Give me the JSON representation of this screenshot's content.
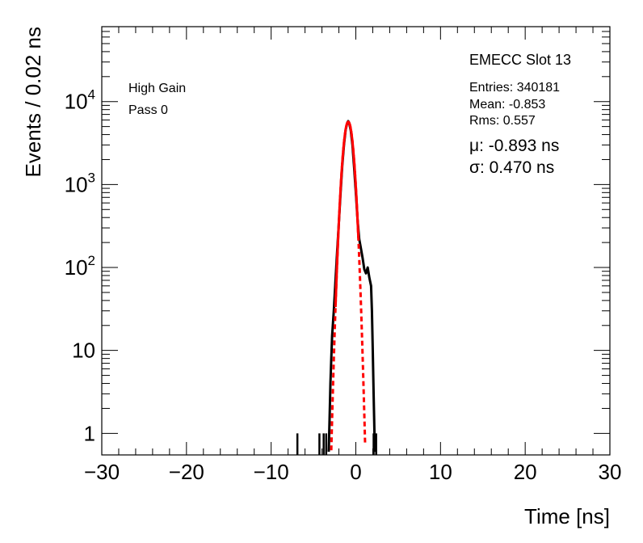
{
  "chart_data": {
    "type": "histogram",
    "title": "EMECC Slot 13",
    "xlabel": "Time [ns]",
    "ylabel": "Events / 0.02 ns",
    "xlim": [
      -30,
      30
    ],
    "ylim": [
      0.55,
      80000
    ],
    "yscale": "log",
    "xticks": [
      -30,
      -20,
      -10,
      0,
      10,
      20,
      30
    ],
    "xtick_labels": [
      "−30",
      "−20",
      "−10",
      "0",
      "10",
      "20",
      "30"
    ],
    "yticks": [
      {
        "value": 1,
        "label": "1",
        "sup": ""
      },
      {
        "value": 10,
        "label": "10",
        "sup": ""
      },
      {
        "value": 100,
        "label": "10",
        "sup": "2"
      },
      {
        "value": 1000,
        "label": "10",
        "sup": "3"
      },
      {
        "value": 10000,
        "label": "10",
        "sup": "4"
      }
    ],
    "annotations": {
      "gain": "High Gain",
      "pass": "Pass 0"
    },
    "stats": {
      "entries": "Entries: 340181",
      "mean": "Mean: -0.853",
      "rms": "Rms: 0.557",
      "mu": "μ: -0.893 ns",
      "sigma": "σ: 0.470 ns"
    },
    "histogram": {
      "color": "#000000",
      "isolated_bins": [
        {
          "x": -6.9,
          "y": 1
        },
        {
          "x": -4.3,
          "y": 1
        },
        {
          "x": -3.8,
          "y": 1
        },
        {
          "x": -3.5,
          "y": 1
        },
        {
          "x": 2.1,
          "y": 1
        },
        {
          "x": 2.4,
          "y": 1
        }
      ],
      "body": [
        {
          "x": -3.2,
          "y": 0.6
        },
        {
          "x": -3.1,
          "y": 1.5
        },
        {
          "x": -3.0,
          "y": 4
        },
        {
          "x": -2.9,
          "y": 8
        },
        {
          "x": -2.8,
          "y": 15
        },
        {
          "x": -2.6,
          "y": 30
        },
        {
          "x": -2.4,
          "y": 70
        },
        {
          "x": -2.2,
          "y": 160
        },
        {
          "x": -2.0,
          "y": 350
        },
        {
          "x": -1.8,
          "y": 800
        },
        {
          "x": -1.6,
          "y": 1700
        },
        {
          "x": -1.4,
          "y": 3000
        },
        {
          "x": -1.2,
          "y": 4600
        },
        {
          "x": -1.0,
          "y": 5600
        },
        {
          "x": -0.9,
          "y": 5800
        },
        {
          "x": -0.8,
          "y": 5600
        },
        {
          "x": -0.6,
          "y": 4500
        },
        {
          "x": -0.4,
          "y": 3000
        },
        {
          "x": -0.2,
          "y": 1600
        },
        {
          "x": 0.0,
          "y": 800
        },
        {
          "x": 0.2,
          "y": 380
        },
        {
          "x": 0.4,
          "y": 220
        },
        {
          "x": 0.6,
          "y": 170
        },
        {
          "x": 0.8,
          "y": 130
        },
        {
          "x": 1.0,
          "y": 95
        },
        {
          "x": 1.2,
          "y": 85
        },
        {
          "x": 1.4,
          "y": 100
        },
        {
          "x": 1.6,
          "y": 75
        },
        {
          "x": 1.8,
          "y": 60
        },
        {
          "x": 1.9,
          "y": 30
        },
        {
          "x": 2.0,
          "y": 10
        },
        {
          "x": 2.1,
          "y": 3
        },
        {
          "x": 2.2,
          "y": 1
        },
        {
          "x": 2.3,
          "y": 0.6
        }
      ]
    },
    "fit": {
      "function": "gaussian",
      "color": "#ff0000",
      "amplitude": 5700,
      "mu": -0.893,
      "sigma": 0.47,
      "solid_range": [
        -2.4,
        0.3
      ],
      "dashed_range": [
        -2.9,
        1.1
      ]
    }
  }
}
